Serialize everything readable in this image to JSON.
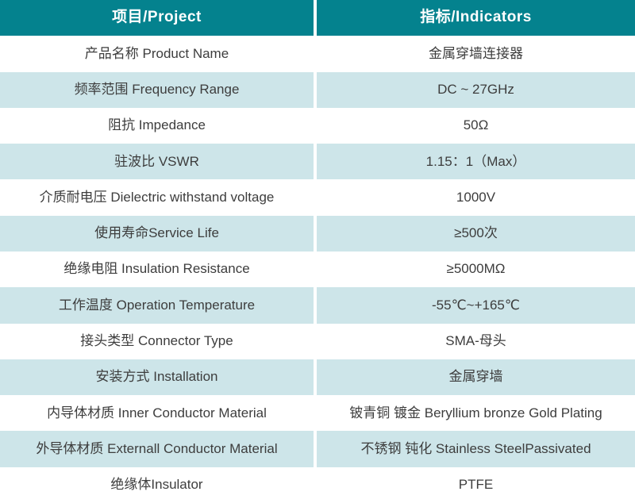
{
  "table": {
    "header": {
      "project": "项目/Project",
      "indicators": "指标/Indicators"
    },
    "rows": [
      {
        "project": "产品名称 Product Name",
        "indicator": "金属穿墙连接器"
      },
      {
        "project": "频率范围 Frequency Range",
        "indicator": "DC ~ 27GHz"
      },
      {
        "project": "阻抗 Impedance",
        "indicator": "50Ω"
      },
      {
        "project": "驻波比 VSWR",
        "indicator": "1.15：1（Max）"
      },
      {
        "project": "介质耐电压 Dielectric withstand voltage",
        "indicator": "1000V"
      },
      {
        "project": "使用寿命Service Life",
        "indicator": "≥500次"
      },
      {
        "project": "绝缘电阻 Insulation Resistance",
        "indicator": "≥5000MΩ"
      },
      {
        "project": "工作温度 Operation Temperature",
        "indicator": "-55℃~+165℃"
      },
      {
        "project": "接头类型 Connector Type",
        "indicator": "SMA-母头"
      },
      {
        "project": "安装方式 Installation",
        "indicator": "金属穿墙"
      },
      {
        "project": "内导体材质 Inner Conductor Material",
        "indicator": "铍青铜 镀金 Beryllium bronze Gold Plating"
      },
      {
        "project": "外导体材质 Externall Conductor Material",
        "indicator": "不锈钢 钝化 Stainless SteelPassivated"
      },
      {
        "project": "绝缘体Insulator",
        "indicator": "PTFE"
      }
    ]
  },
  "colors": {
    "header_bg": "#04828e",
    "header_text": "#ffffff",
    "alt_row_bg": "#cde5e9",
    "row_bg": "#ffffff",
    "body_text": "#3d3d3d",
    "gutter": "#ffffff"
  }
}
